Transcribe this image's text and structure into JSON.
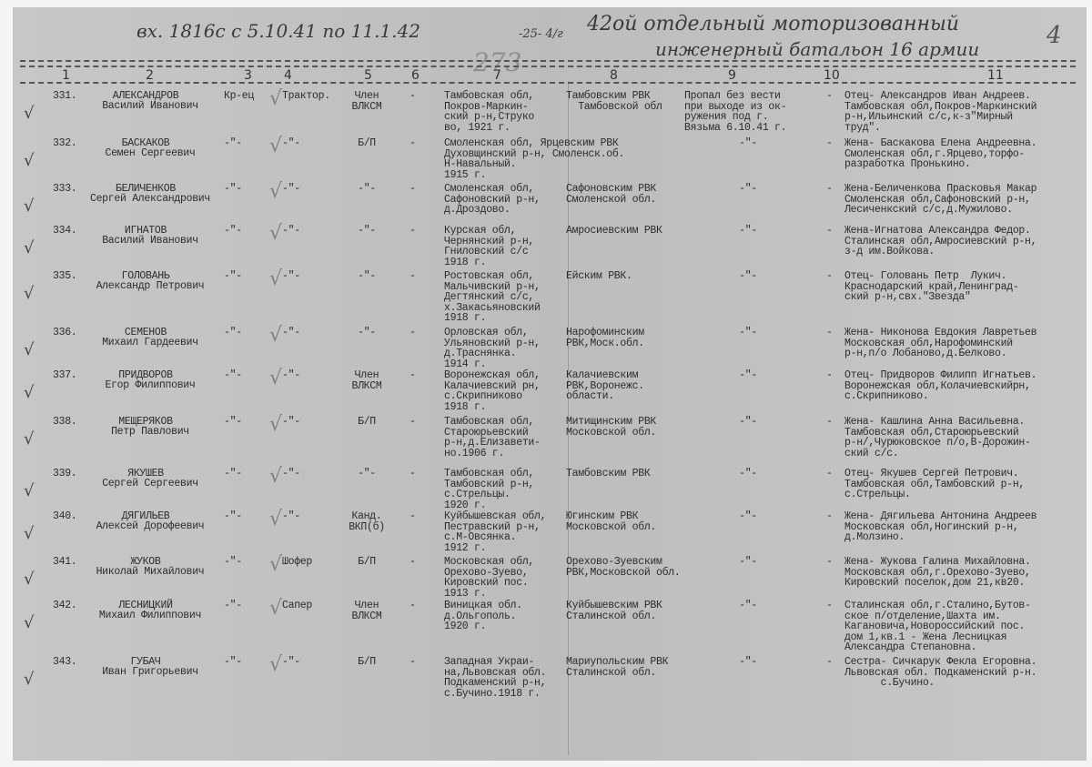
{
  "header": {
    "handwritten_line1": "вх. 1816с с 5.10.41 по 11.1.42",
    "page_mark": "-25- 4/г",
    "unit_line1": "42ой отдельный моторизованный",
    "unit_line2": "инженерный батальон 16 армии",
    "stamp_numbers": "273",
    "corner_mark": "4"
  },
  "columns": [
    "1",
    "2",
    "3",
    "4",
    "5",
    "6",
    "7",
    "8",
    "9",
    "10",
    "11"
  ],
  "rows": [
    {
      "num": "331.",
      "name": [
        "АЛЕКСАНДРОВ",
        "Василий Иванович"
      ],
      "c3": "Кр-ец",
      "c4": "Трактор.",
      "c5": "Член\nВЛКСМ",
      "c6": "-",
      "c7": "Тамбовская обл,\nПокров-Маркин-\nский р-н,Струко\nво, 1921 г.",
      "c8": "Тамбовским РВК\n  Тамбовской обл",
      "c9": "Пропал без вести\nпри выходе из ок-\nружения под г.\nВязьма 6.10.41 г.",
      "c10": "-",
      "c11": "Отец- Александров Иван Андреев.\nТамбовская обл,Покров-Маркинский\nр-н,Ильинский с/с,к-з\"Мирный\nтруд\"."
    },
    {
      "num": "332.",
      "name": [
        "БАСКАКОВ",
        "Семен Сергеевич"
      ],
      "c3": "-\"-",
      "c4": "-\"-",
      "c5": "Б/П",
      "c6": "-",
      "c7": "Смоленская обл, Ярцевским РВК\nДуховщинский р-н, Смоленск.об.\nН-Навальный.\n1915 г.",
      "c8": "",
      "c9": "-\"-",
      "c10": "-",
      "c11": "Жена- Баскакова Елена Андреевна.\nСмоленская обл,г.Ярцево,торфо-\nразработка Пронькино."
    },
    {
      "num": "333.",
      "name": [
        "БЕЛИЧЕНКОВ",
        "Сергей Александрович"
      ],
      "c3": "-\"-",
      "c4": "-\"-",
      "c5": "-\"-",
      "c6": "-",
      "c7": "Смоленская обл,\nСафоновский р-н,\nд.Дроздово.",
      "c8": "Сафоновским РВК\nСмоленской обл.",
      "c9": "-\"-",
      "c10": "-",
      "c11": "Жена-Беличенкова Прасковья Макар\nСмоленская обл,Сафоновский р-н,\nЛесиченкский с/с,д.Мужилово."
    },
    {
      "num": "334.",
      "name": [
        "ИГНАТОВ",
        "Василий Иванович"
      ],
      "c3": "-\"-",
      "c4": "-\"-",
      "c5": "-\"-",
      "c6": "-",
      "c7": "Курская обл,\nЧернянский р-н,\nГнилoвский с/с\n1918 г.",
      "c8": "Амросиевским РВК",
      "c9": "-\"-",
      "c10": "-",
      "c11": "Жена-Игнатова Александра Федор.\nСталинская обл,Амросиевский р-н,\nз-д им.Войкова."
    },
    {
      "num": "335.",
      "name": [
        "ГОЛОВАНЬ",
        "Александр Петрович"
      ],
      "c3": "-\"-",
      "c4": "-\"-",
      "c5": "-\"-",
      "c6": "-",
      "c7": "Ростовская обл,\nМальчивский р-н,\nДегтянский с/с,\nх.Закасьяновский\n1918 г.",
      "c8": "Ейским РВК.",
      "c9": "-\"-",
      "c10": "-",
      "c11": "Отец- Головань Петр  Лукич.\nКраснодарский край,Ленинград-\nский р-н,свх.\"Звезда\""
    },
    {
      "num": "336.",
      "name": [
        "СЕМЕНОВ",
        "Михаил Гардеевич"
      ],
      "c3": "-\"-",
      "c4": "-\"-",
      "c5": "-\"-",
      "c6": "-",
      "c7": "Орловская обл,\nУльяновский р-н,\nд.Траснянка.\n1914 г.",
      "c8": "Нарофоминским\nРВК,Моск.обл.",
      "c9": "-\"-",
      "c10": "-",
      "c11": "Жена- Никонова Евдокия Лавретьев\nМосковская обл,Нарофоминский\nр-н,п/о Лобаново,д.Белково."
    },
    {
      "num": "337.",
      "name": [
        "ПРИДВОРОВ",
        "Егор Филиппович"
      ],
      "c3": "-\"-",
      "c4": "-\"-",
      "c5": "Член\nВЛКСМ",
      "c6": "-",
      "c7": "Воронежская обл,\nКалачиевский рн,\nс.Скрипниково\n1918 г.",
      "c8": "Калачиевским\nРВК,Воронежс.\nобласти.",
      "c9": "-\"-",
      "c10": "-",
      "c11": "Отец- Придворов Филипп Игнатьев.\nВоронежская обл,Колачиевскийрн,\nс.Скрипниково."
    },
    {
      "num": "338.",
      "name": [
        "МЕЩЕРЯКОВ",
        "Петр Павлович"
      ],
      "c3": "-\"-",
      "c4": "-\"-",
      "c5": "Б/П",
      "c6": "-",
      "c7": "Тамбовская обл,\nСтароюрьевский\nр-н,д.Елизавети-\nно.1906 г.",
      "c8": "Митищинским РВК\nМосковской обл.",
      "c9": "-\"-",
      "c10": "-",
      "c11": "Жена- Кашлина Анна Васильевна.\nТамбовская обл,Староюрьевский\nр-н/,Чурюковское п/о,В-Дорожин-\nский с/с."
    },
    {
      "num": "339.",
      "name": [
        "ЯКУШЕВ",
        "Сергей Сергеевич"
      ],
      "c3": "-\"-",
      "c4": "-\"-",
      "c5": "-\"-",
      "c6": "-",
      "c7": "Тамбовская обл,\nТамбовский р-н,\nс.Стрельцы.\n1920 г.",
      "c8": "Тамбовским РВК",
      "c9": "-\"-",
      "c10": "-",
      "c11": "Отец- Якушев Сергей Петрович.\nТамбовская обл,Тамбовский р-н,\nс.Стрельцы."
    },
    {
      "num": "340.",
      "name": [
        "ДЯГИЛЬЕВ",
        "Алексей Дорофеевич"
      ],
      "c3": "-\"-",
      "c4": "-\"-",
      "c5": "Канд.\nВКП(б)",
      "c6": "-",
      "c7": "Куйбышевская обл,\nПестравский р-н,\nс.М-Овсянка.\n1912 г.",
      "c8": "Югинским РВК\nМосковской обл.",
      "c9": "-\"-",
      "c10": "-",
      "c11": "Жена- Дягильева Антонина Андреев\nМосковская обл,Ногинский р-н,\nд.Молзино."
    },
    {
      "num": "341.",
      "name": [
        "ЖУКОВ",
        "Николай Михайлович"
      ],
      "c3": "-\"-",
      "c4": "Шофер",
      "c5": "Б/П",
      "c6": "-",
      "c7": "Московская обл,\nОрехово-Зуево,\nКировский пос.\n1913 г.",
      "c8": "Орехово-Зуевским\nРВК,Московской обл.",
      "c9": "-\"-",
      "c10": "-",
      "c11": "Жена- Жукова Галина Михайловна.\nМосковская обл,г.Орехово-Зуево,\nКировский поселок,дом 21,кв20."
    },
    {
      "num": "342.",
      "name": [
        "ЛЕСНИЦКИЙ",
        "Михаил Филиппович"
      ],
      "c3": "-\"-",
      "c4": "Сапер",
      "c5": "Член\nВЛКСМ",
      "c6": "-",
      "c7": "Виницкая обл.\nд.Ольгополь.\n1920 г.",
      "c8": "Куйбышевским РВК\nСталинской обл.",
      "c9": "-\"-",
      "c10": "-",
      "c11": "Сталинская обл,г.Сталино,Бутов-\nское п/отделение,Шахта им.\nКагановича,Новороссийский пос.\nдом 1,кв.1 - Жена Лесницкая\nАлександра Степановна."
    },
    {
      "num": "343.",
      "name": [
        "ГУБАЧ",
        "Иван Григорьевич"
      ],
      "c3": "-\"-",
      "c4": "-\"-",
      "c5": "Б/П",
      "c6": "-",
      "c7": "Западная Украи-\nна,Львовская обл.\nПодкаменский р-н,\nс.Бучино.1918 г.",
      "c8": "Мариупольским РВК\nСталинской обл.",
      "c9": "-\"-",
      "c10": "-",
      "c11": "Сестра- Сичкарук Фекла Егоровна.\nЛьвовская обл. Подкаменский р-н.\n      с.Бучино."
    }
  ]
}
